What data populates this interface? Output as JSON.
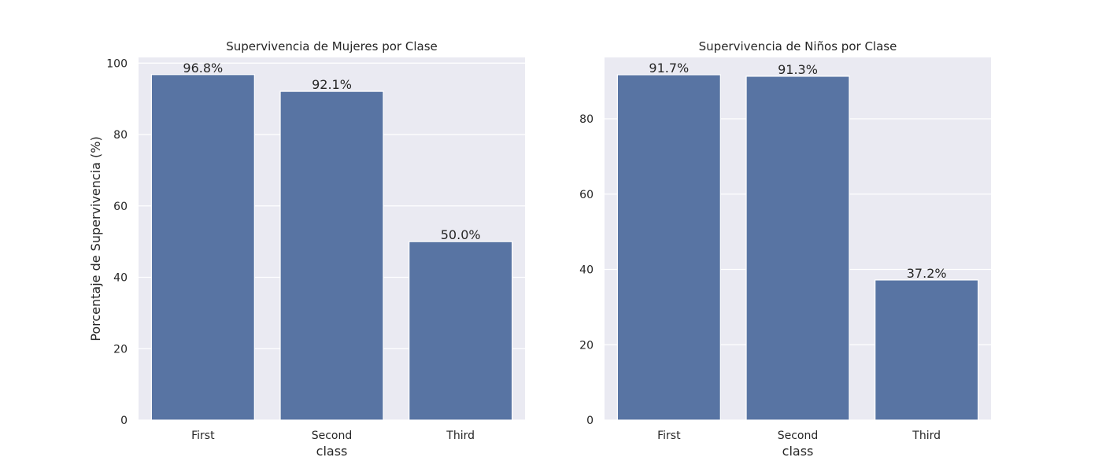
{
  "chart_data": [
    {
      "type": "bar",
      "title": "Supervivencia de Mujeres por Clase",
      "xlabel": "class",
      "ylabel": "Porcentaje de Supervivencia (%)",
      "categories": [
        "First",
        "Second",
        "Third"
      ],
      "values": [
        96.8,
        92.1,
        50.0
      ],
      "value_labels": [
        "96.8%",
        "92.1%",
        "50.0%"
      ],
      "ylim": [
        0,
        101.6
      ],
      "yticks": [
        0,
        20,
        40,
        60,
        80,
        100
      ],
      "grid": true,
      "bar_color": "#5874a3",
      "background_color": "#eaeaf2"
    },
    {
      "type": "bar",
      "title": "Supervivencia de Niños por Clase",
      "xlabel": "class",
      "ylabel": "",
      "categories": [
        "First",
        "Second",
        "Third"
      ],
      "values": [
        91.7,
        91.3,
        37.2
      ],
      "value_labels": [
        "91.7%",
        "91.3%",
        "37.2%"
      ],
      "ylim": [
        0,
        96.3
      ],
      "yticks": [
        0,
        20,
        40,
        60,
        80
      ],
      "grid": true,
      "bar_color": "#5874a3",
      "background_color": "#eaeaf2"
    }
  ]
}
